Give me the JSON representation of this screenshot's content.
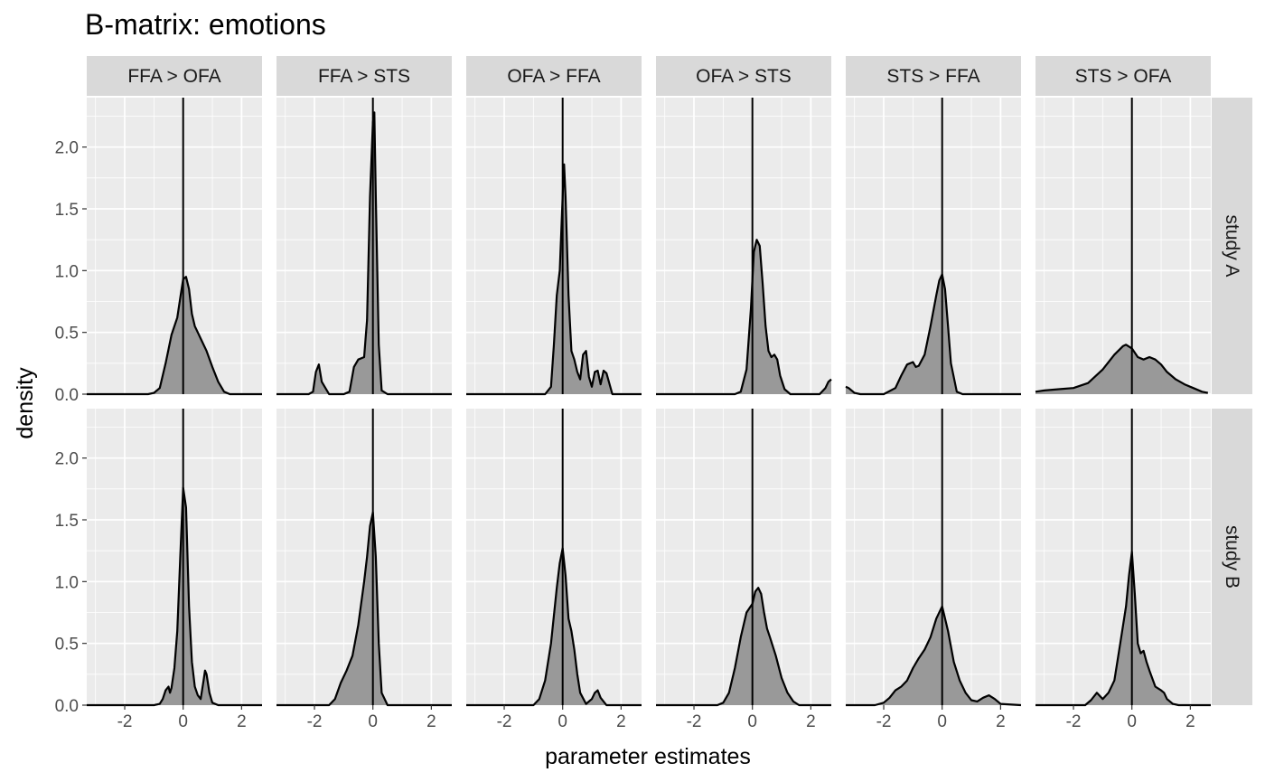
{
  "chart_data": {
    "type": "area",
    "title": "B-matrix: emotions",
    "xlabel": "parameter estimates",
    "ylabel": "density",
    "xlim": [
      -3.3,
      2.7
    ],
    "ylim": [
      0,
      2.4
    ],
    "x_ticks": [
      -2,
      0,
      2
    ],
    "x_tick_labels": [
      "-2",
      "0",
      "2"
    ],
    "y_ticks": [
      0,
      0.5,
      1,
      1.5,
      2
    ],
    "y_tick_labels": [
      "0.0",
      "0.5",
      "1.0",
      "1.5",
      "2.0"
    ],
    "facet_columns": [
      "FFA > OFA",
      "FFA > STS",
      "OFA > FFA",
      "OFA > STS",
      "STS > FFA",
      "STS > OFA"
    ],
    "facet_rows": [
      "study A",
      "study B"
    ],
    "reference_line_x": 0,
    "grid": true,
    "colors": {
      "panel_bg": "#ebebeb",
      "strip_bg": "#d9d9d9",
      "grid": "#ffffff",
      "fill": "#999999",
      "line": "#000000"
    },
    "densities": {
      "study A": {
        "FFA > OFA": {
          "x": [
            -3.3,
            -1.2,
            -1.0,
            -0.8,
            -0.6,
            -0.4,
            -0.2,
            -0.1,
            0.0,
            0.1,
            0.2,
            0.3,
            0.4,
            0.5,
            0.6,
            0.8,
            1.0,
            1.2,
            1.4,
            1.6,
            2.7
          ],
          "y": [
            0,
            0,
            0.01,
            0.05,
            0.25,
            0.48,
            0.62,
            0.78,
            0.93,
            0.95,
            0.85,
            0.65,
            0.55,
            0.5,
            0.45,
            0.35,
            0.22,
            0.1,
            0.02,
            0,
            0
          ]
        },
        "FFA > STS": {
          "x": [
            -3.3,
            -2.2,
            -2.05,
            -1.95,
            -1.85,
            -1.75,
            -1.5,
            -1.0,
            -0.8,
            -0.65,
            -0.5,
            -0.3,
            -0.2,
            -0.1,
            0.0,
            0.05,
            0.1,
            0.2,
            0.3,
            0.5,
            2.7
          ],
          "y": [
            0,
            0,
            0.02,
            0.18,
            0.24,
            0.1,
            0,
            0,
            0.02,
            0.22,
            0.28,
            0.3,
            0.6,
            1.6,
            2.2,
            2.28,
            1.6,
            0.4,
            0.03,
            0,
            0
          ]
        },
        "OFA > FFA": {
          "x": [
            -3.3,
            -0.6,
            -0.4,
            -0.3,
            -0.2,
            -0.1,
            0.0,
            0.05,
            0.1,
            0.2,
            0.3,
            0.4,
            0.5,
            0.6,
            0.7,
            0.8,
            0.9,
            1.0,
            1.1,
            1.2,
            1.3,
            1.4,
            1.5,
            1.7,
            2.7
          ],
          "y": [
            0,
            0,
            0.06,
            0.4,
            0.8,
            1.0,
            1.6,
            1.86,
            1.6,
            0.8,
            0.35,
            0.28,
            0.18,
            0.12,
            0.32,
            0.35,
            0.14,
            0.06,
            0.18,
            0.19,
            0.08,
            0.19,
            0.17,
            0,
            0
          ]
        },
        "OFA > STS": {
          "x": [
            -3.3,
            -0.6,
            -0.4,
            -0.2,
            -0.05,
            0.05,
            0.15,
            0.25,
            0.35,
            0.45,
            0.55,
            0.65,
            0.75,
            0.85,
            0.95,
            1.1,
            1.3,
            1.5,
            2.0,
            2.3,
            2.5,
            2.6,
            2.7
          ],
          "y": [
            0,
            0,
            0.02,
            0.2,
            0.7,
            1.15,
            1.25,
            1.2,
            0.9,
            0.55,
            0.35,
            0.3,
            0.32,
            0.28,
            0.15,
            0.04,
            0,
            0,
            0,
            0,
            0.05,
            0.1,
            0.12
          ]
        },
        "STS > FFA": {
          "x": [
            -3.3,
            -3.2,
            -3.0,
            -2.8,
            -2.5,
            -2.0,
            -1.6,
            -1.4,
            -1.2,
            -1.0,
            -0.9,
            -0.8,
            -0.6,
            -0.4,
            -0.2,
            -0.1,
            0.0,
            0.1,
            0.2,
            0.3,
            0.5,
            0.7,
            2.7
          ],
          "y": [
            0.06,
            0.05,
            0.01,
            0,
            0,
            0,
            0.05,
            0.15,
            0.24,
            0.26,
            0.22,
            0.23,
            0.32,
            0.55,
            0.8,
            0.92,
            0.97,
            0.85,
            0.55,
            0.25,
            0.02,
            0,
            0
          ]
        },
        "STS > OFA": {
          "x": [
            -3.3,
            -3.0,
            -2.5,
            -2.0,
            -1.5,
            -1.0,
            -0.6,
            -0.3,
            -0.2,
            0.0,
            0.2,
            0.4,
            0.6,
            0.8,
            1.0,
            1.2,
            1.5,
            1.8,
            2.1,
            2.4,
            2.6
          ],
          "y": [
            0.02,
            0.03,
            0.04,
            0.05,
            0.09,
            0.2,
            0.32,
            0.39,
            0.4,
            0.37,
            0.3,
            0.28,
            0.3,
            0.28,
            0.24,
            0.18,
            0.12,
            0.08,
            0.05,
            0.02,
            0.01
          ]
        }
      },
      "study B": {
        "FFA > OFA": {
          "x": [
            -3.3,
            -1.0,
            -0.8,
            -0.7,
            -0.6,
            -0.5,
            -0.45,
            -0.4,
            -0.3,
            -0.2,
            -0.1,
            0.0,
            0.1,
            0.2,
            0.3,
            0.4,
            0.5,
            0.6,
            0.7,
            0.75,
            0.8,
            0.9,
            1.0,
            1.2,
            2.7
          ],
          "y": [
            0,
            0,
            0.01,
            0.05,
            0.12,
            0.15,
            0.1,
            0.14,
            0.3,
            0.6,
            1.2,
            1.76,
            1.6,
            0.8,
            0.35,
            0.15,
            0.08,
            0.05,
            0.2,
            0.28,
            0.25,
            0.1,
            0.02,
            0,
            0
          ]
        },
        "FFA > STS": {
          "x": [
            -3.3,
            -1.5,
            -1.3,
            -1.1,
            -0.9,
            -0.7,
            -0.5,
            -0.3,
            -0.2,
            -0.1,
            0.0,
            0.1,
            0.2,
            0.3,
            0.5,
            2.7
          ],
          "y": [
            0,
            0,
            0.05,
            0.18,
            0.28,
            0.4,
            0.65,
            1.0,
            1.2,
            1.45,
            1.56,
            1.2,
            0.5,
            0.1,
            0,
            0
          ]
        },
        "OFA > FFA": {
          "x": [
            -3.3,
            -1.0,
            -0.8,
            -0.6,
            -0.4,
            -0.2,
            -0.1,
            0.0,
            0.1,
            0.2,
            0.3,
            0.4,
            0.5,
            0.6,
            0.8,
            1.0,
            1.1,
            1.2,
            1.3,
            1.5,
            2.7
          ],
          "y": [
            0,
            0,
            0.05,
            0.2,
            0.5,
            0.95,
            1.15,
            1.27,
            1.05,
            0.7,
            0.6,
            0.45,
            0.25,
            0.1,
            0.01,
            0.05,
            0.1,
            0.12,
            0.06,
            0,
            0
          ]
        },
        "OFA > STS": {
          "x": [
            -3.3,
            -1.2,
            -1.0,
            -0.8,
            -0.6,
            -0.4,
            -0.2,
            0.0,
            0.1,
            0.2,
            0.3,
            0.4,
            0.5,
            0.6,
            0.8,
            1.0,
            1.2,
            1.4,
            1.6,
            2.7
          ],
          "y": [
            0,
            0,
            0.02,
            0.1,
            0.3,
            0.55,
            0.75,
            0.82,
            0.92,
            0.95,
            0.9,
            0.75,
            0.62,
            0.55,
            0.4,
            0.22,
            0.1,
            0.03,
            0,
            0
          ]
        },
        "STS > FFA": {
          "x": [
            -3.3,
            -2.3,
            -2.0,
            -1.8,
            -1.6,
            -1.4,
            -1.2,
            -1.0,
            -0.8,
            -0.6,
            -0.4,
            -0.2,
            0.0,
            0.2,
            0.4,
            0.6,
            0.8,
            1.0,
            1.2,
            1.4,
            1.6,
            1.8,
            2.0,
            2.7
          ],
          "y": [
            0,
            0,
            0.02,
            0.06,
            0.12,
            0.15,
            0.2,
            0.3,
            0.38,
            0.45,
            0.55,
            0.7,
            0.8,
            0.6,
            0.35,
            0.2,
            0.1,
            0.04,
            0.03,
            0.06,
            0.08,
            0.05,
            0.01,
            0
          ]
        },
        "STS > OFA": {
          "x": [
            -3.3,
            -1.6,
            -1.4,
            -1.2,
            -1.0,
            -0.8,
            -0.6,
            -0.4,
            -0.2,
            -0.1,
            0.0,
            0.1,
            0.2,
            0.3,
            0.4,
            0.5,
            0.6,
            0.8,
            1.0,
            1.1,
            1.2,
            1.4,
            1.6,
            2.7
          ],
          "y": [
            0,
            0,
            0.04,
            0.1,
            0.05,
            0.1,
            0.2,
            0.5,
            0.8,
            1.05,
            1.24,
            0.9,
            0.5,
            0.42,
            0.44,
            0.35,
            0.28,
            0.15,
            0.12,
            0.1,
            0.05,
            0.01,
            0,
            0
          ]
        }
      }
    }
  }
}
